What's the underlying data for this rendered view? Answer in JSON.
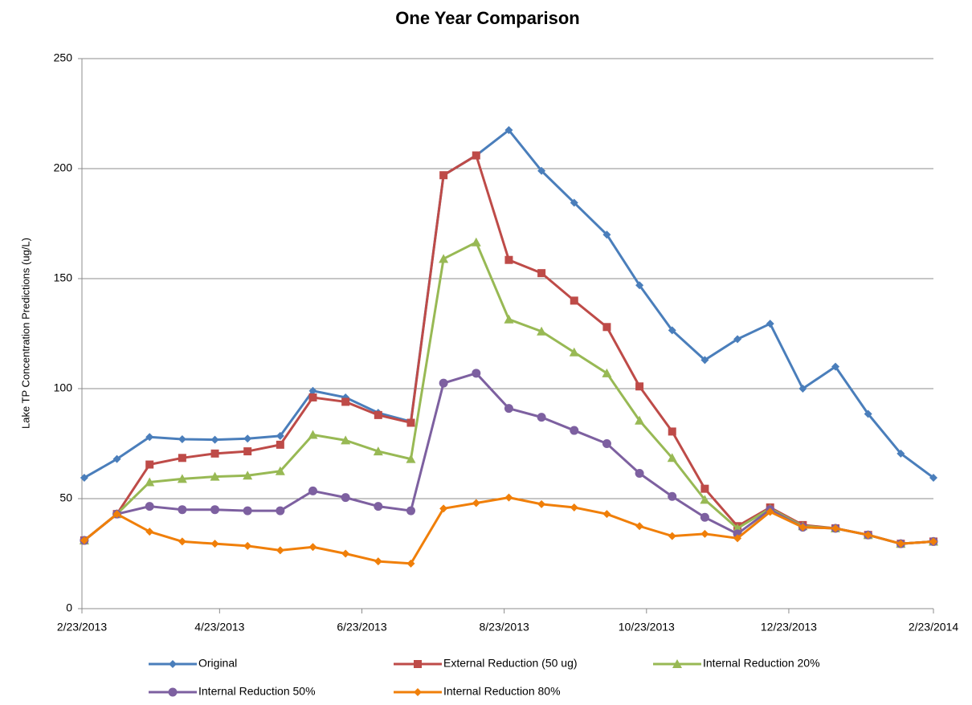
{
  "chart_data": {
    "type": "line",
    "title": "One Year Comparison",
    "y_label": "Lake TP Concentration Predictions (ug/L)",
    "x": [
      "2/24/2013",
      "3/10/2013",
      "3/24/2013",
      "4/7/2013",
      "4/21/2013",
      "5/5/2013",
      "5/19/2013",
      "6/2/2013",
      "6/16/2013",
      "6/30/2013",
      "7/14/2013",
      "7/28/2013",
      "8/11/2013",
      "8/25/2013",
      "9/8/2013",
      "9/22/2013",
      "10/6/2013",
      "10/20/2013",
      "11/3/2013",
      "11/17/2013",
      "12/1/2013",
      "12/15/2013",
      "12/29/2013",
      "1/12/2014",
      "1/26/2014",
      "2/9/2014",
      "2/23/2014"
    ],
    "series": [
      {
        "name": "Original",
        "color": "#4a7ebb",
        "marker": "diamond",
        "values": [
          59.5,
          68,
          78,
          77,
          76.8,
          77.3,
          78.5,
          99,
          96,
          89,
          85,
          197,
          206,
          217.5,
          199,
          184.5,
          170,
          147,
          126.5,
          113,
          122.5,
          129.5,
          100,
          110,
          88.5,
          70.5,
          59.5
        ]
      },
      {
        "name": "External Reduction (50 ug)",
        "color": "#be4b48",
        "marker": "square",
        "values": [
          31,
          43,
          65.5,
          68.5,
          70.5,
          71.5,
          74.5,
          96,
          94,
          88,
          84.5,
          197,
          206,
          158.5,
          152.5,
          140,
          128,
          101,
          80.5,
          54.5,
          37.5,
          46,
          38,
          36.5,
          33.5,
          29.5,
          30.5
        ]
      },
      {
        "name": "Internal Reduction 20%",
        "color": "#98b954",
        "marker": "triangle",
        "values": [
          31,
          43,
          57.5,
          59,
          60,
          60.5,
          62.5,
          79,
          76.5,
          71.5,
          68,
          159,
          166.5,
          131.5,
          126,
          116.5,
          107,
          85.5,
          68.5,
          49.5,
          36.5,
          45.5,
          37.5,
          36.5,
          33.5,
          29.5,
          30.5
        ]
      },
      {
        "name": "Internal Reduction 50%",
        "color": "#7d60a0",
        "marker": "circle",
        "values": [
          31,
          43,
          46.5,
          45,
          45,
          44.5,
          44.5,
          53.5,
          50.5,
          46.5,
          44.5,
          102.5,
          107,
          91,
          87,
          81,
          75,
          61.5,
          51,
          41.5,
          34,
          45,
          37,
          36.5,
          33.5,
          29.5,
          30.5
        ]
      },
      {
        "name": "Internal Reduction 80%",
        "color": "#f07f09",
        "marker": "diamond",
        "values": [
          31,
          43,
          35,
          30.5,
          29.5,
          28.5,
          26.5,
          28,
          25,
          21.5,
          20.5,
          45.5,
          48,
          50.5,
          47.5,
          46,
          43,
          37.5,
          33,
          34,
          32,
          44,
          37,
          36.5,
          33.5,
          29.5,
          30.5
        ]
      }
    ],
    "xlim": [
      "2/23/2013",
      "2/23/2014"
    ],
    "xticks": [
      "2/23/2013",
      "4/23/2013",
      "6/23/2013",
      "8/23/2013",
      "10/23/2013",
      "12/23/2013",
      "2/23/2014"
    ],
    "ylim": [
      0,
      250
    ],
    "yticks": [
      0,
      50,
      100,
      150,
      200,
      250
    ],
    "grid": true,
    "legend": "bottom"
  }
}
